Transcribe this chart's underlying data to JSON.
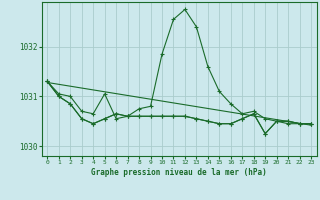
{
  "title": "Graphe pression niveau de la mer (hPa)",
  "background_color": "#cce8ec",
  "grid_color": "#aacccc",
  "line_color": "#1a6b2a",
  "marker_color": "#1a6b2a",
  "xlim": [
    -0.5,
    23.5
  ],
  "ylim": [
    1029.8,
    1032.9
  ],
  "yticks": [
    1030,
    1031,
    1032
  ],
  "xticks": [
    0,
    1,
    2,
    3,
    4,
    5,
    6,
    7,
    8,
    9,
    10,
    11,
    12,
    13,
    14,
    15,
    16,
    17,
    18,
    19,
    20,
    21,
    22,
    23
  ],
  "series": [
    [
      1031.3,
      1031.05,
      1031.0,
      1030.7,
      1030.65,
      1031.05,
      1030.55,
      1030.6,
      1030.75,
      1030.8,
      1031.85,
      1032.55,
      1032.75,
      1032.4,
      1031.6,
      1031.1,
      1030.85,
      1030.65,
      1030.7,
      1030.55,
      1030.5,
      1030.45,
      1030.45,
      1030.45
    ],
    [
      1031.3,
      1031.0,
      1030.85,
      1030.55,
      1030.45,
      1030.55,
      1030.65,
      1030.6,
      1030.6,
      1030.6,
      1030.6,
      1030.6,
      1030.6,
      1030.55,
      1030.5,
      1030.45,
      1030.45,
      1030.55,
      1030.65,
      1030.25,
      1030.5,
      1030.5,
      1030.45,
      1030.45
    ],
    [
      1031.3,
      1031.0,
      1030.85,
      1030.55,
      1030.45,
      1030.55,
      1030.65,
      1030.6,
      1030.6,
      1030.6,
      1030.6,
      1030.6,
      1030.6,
      1030.55,
      1030.5,
      1030.45,
      1030.45,
      1030.55,
      1030.65,
      1030.25,
      1030.5,
      1030.5,
      1030.45,
      1030.45
    ]
  ],
  "trend_line": {
    "x": [
      0,
      23
    ],
    "y": [
      1031.28,
      1030.42
    ]
  }
}
